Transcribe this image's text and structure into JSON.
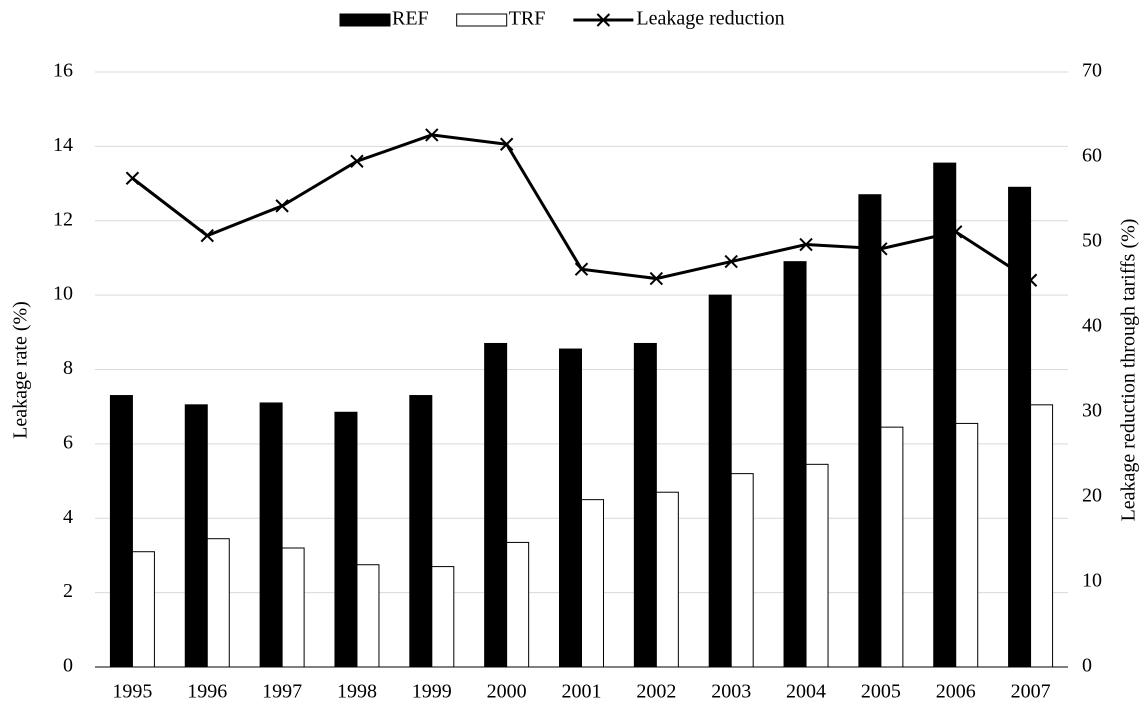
{
  "chart_data": {
    "type": "bar+line",
    "categories": [
      "1995",
      "1996",
      "1997",
      "1998",
      "1999",
      "2000",
      "2001",
      "2002",
      "2003",
      "2004",
      "2005",
      "2006",
      "2007"
    ],
    "series": [
      {
        "name": "REF",
        "type": "bar",
        "color": "#000000",
        "values": [
          7.3,
          7.05,
          7.1,
          6.85,
          7.3,
          8.7,
          8.55,
          8.7,
          10.0,
          10.9,
          12.7,
          13.55,
          12.9
        ]
      },
      {
        "name": "TRF",
        "type": "bar",
        "color": "#ffffff",
        "values": [
          3.1,
          3.45,
          3.2,
          2.75,
          2.7,
          3.35,
          4.5,
          4.7,
          5.2,
          5.45,
          6.45,
          6.55,
          7.05
        ]
      },
      {
        "name": "Leakage reduction",
        "type": "line",
        "axis": "y2",
        "color": "#000000",
        "values": [
          57.5,
          50.75,
          54.25,
          59.5,
          62.6,
          61.5,
          46.8,
          45.7,
          47.7,
          49.7,
          49.2,
          51.2,
          45.5
        ]
      }
    ],
    "y_label": "Leakage rate (%)",
    "y2_label": "Leakage reduction through tariffs (%)",
    "ylim": [
      0,
      16
    ],
    "yticks": [
      0,
      2,
      4,
      6,
      8,
      10,
      12,
      14,
      16
    ],
    "y2lim": [
      0,
      70
    ],
    "y2ticks": [
      0,
      10,
      20,
      30,
      40,
      50,
      60,
      70
    ],
    "grid": true,
    "legend": "top"
  }
}
